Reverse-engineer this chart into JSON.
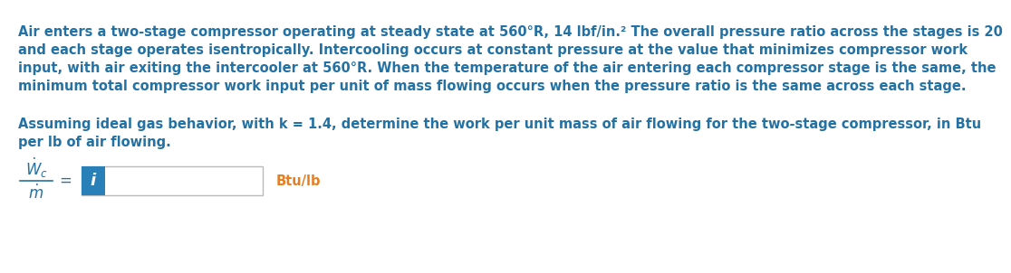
{
  "background_color": "#ffffff",
  "text_color": "#2471a3",
  "btu_label_color": "#e67e22",
  "paragraph1_line1": "Air enters a two-stage compressor operating at steady state at 560°R, 14 lbf/in.² The overall pressure ratio across the stages is 20",
  "paragraph1_line2": "and each stage operates isentropically. Intercooling occurs at constant pressure at the value that minimizes compressor work",
  "paragraph1_line3": "input, with air exiting the intercooler at 560°R. When the temperature of the air entering each compressor stage is the same, the",
  "paragraph1_line4": "minimum total compressor work input per unit of mass flowing occurs when the pressure ratio is the same across each stage.",
  "paragraph2_line1": "Assuming ideal gas behavior, with k = 1.4, determine the work per unit mass of air flowing for the two-stage compressor, in Btu",
  "paragraph2_line2": "per lb of air flowing.",
  "formula_label": "Btu/lb",
  "input_box_color": "#2980b9",
  "input_box_label": "i",
  "input_box_text_color": "#ffffff",
  "border_color": "#bbbbbb",
  "font_size_paragraph": 10.5,
  "font_size_formula": 12,
  "font_size_input": 13,
  "font_size_btu": 10.5
}
